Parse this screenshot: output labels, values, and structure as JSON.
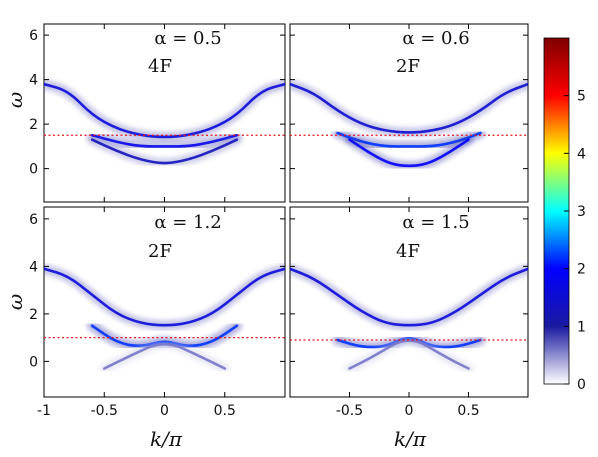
{
  "chart_data": {
    "type": "heatmap",
    "xlabel": "k/π",
    "ylabel": "ω",
    "xlim": [
      -1,
      1
    ],
    "ylim": [
      -1.5,
      6.5
    ],
    "xticks": [
      "-1",
      "-0.5",
      "0",
      "0.5",
      "1"
    ],
    "yticks": [
      "6",
      "4",
      "2",
      "0"
    ],
    "colorbar": {
      "range": [
        0,
        6
      ],
      "ticks": [
        "5",
        "4",
        "3",
        "2",
        "1",
        "0"
      ],
      "colormap": [
        "#ffffff",
        "#1a1aa0",
        "#0000ff",
        "#00ffff",
        "#ffff00",
        "#ff0000",
        "#800000"
      ]
    },
    "panels": [
      {
        "alpha_label": "α = 0.5",
        "phase_label": "4F",
        "fermi_level": 1.5,
        "bands": [
          {
            "x": [
              -1,
              -0.8,
              -0.6,
              -0.4,
              -0.2,
              0,
              0.2,
              0.4,
              0.6,
              0.8,
              1
            ],
            "y": [
              3.8,
              3.5,
              2.4,
              1.8,
              1.5,
              1.4,
              1.5,
              1.8,
              2.4,
              3.5,
              3.8
            ],
            "intensity": 1.6
          },
          {
            "x": [
              -0.6,
              -0.4,
              -0.2,
              0,
              0.2,
              0.4,
              0.6
            ],
            "y": [
              1.5,
              1.2,
              1.0,
              1.0,
              1.0,
              1.2,
              1.5
            ],
            "intensity": 1.8
          },
          {
            "x": [
              -0.6,
              -0.4,
              -0.2,
              0,
              0.2,
              0.4,
              0.6
            ],
            "y": [
              1.3,
              0.8,
              0.4,
              0.2,
              0.4,
              0.8,
              1.3
            ],
            "intensity": 1.3
          }
        ]
      },
      {
        "alpha_label": "α = 0.6",
        "phase_label": "2F",
        "fermi_level": 1.5,
        "bands": [
          {
            "x": [
              -1,
              -0.8,
              -0.6,
              -0.4,
              -0.2,
              0,
              0.2,
              0.4,
              0.6,
              0.8,
              1
            ],
            "y": [
              3.8,
              3.4,
              2.6,
              2.0,
              1.7,
              1.6,
              1.7,
              2.0,
              2.6,
              3.4,
              3.8
            ],
            "intensity": 1.5
          },
          {
            "x": [
              -0.6,
              -0.4,
              -0.2,
              0,
              0.2,
              0.4,
              0.6
            ],
            "y": [
              1.6,
              1.2,
              1.0,
              1.0,
              1.0,
              1.2,
              1.6
            ],
            "intensity": 2.2
          },
          {
            "x": [
              -0.5,
              -0.3,
              -0.15,
              0,
              0.15,
              0.3,
              0.5
            ],
            "y": [
              1.3,
              0.6,
              0.2,
              0.1,
              0.2,
              0.6,
              1.3
            ],
            "intensity": 2.0
          }
        ]
      },
      {
        "alpha_label": "α = 1.2",
        "phase_label": "2F",
        "fermi_level": 1.0,
        "bands": [
          {
            "x": [
              -1,
              -0.8,
              -0.6,
              -0.4,
              -0.2,
              0,
              0.2,
              0.4,
              0.6,
              0.8,
              1
            ],
            "y": [
              3.9,
              3.6,
              2.8,
              2.0,
              1.6,
              1.5,
              1.6,
              2.0,
              2.8,
              3.6,
              3.9
            ],
            "intensity": 1.6
          },
          {
            "x": [
              -0.6,
              -0.4,
              -0.2,
              0,
              0.2,
              0.4,
              0.6
            ],
            "y": [
              1.5,
              0.8,
              0.6,
              0.9,
              0.6,
              0.8,
              1.5
            ],
            "intensity": 2.2
          },
          {
            "x": [
              -0.5,
              -0.3,
              0,
              0.3,
              0.5
            ],
            "y": [
              -0.3,
              0.2,
              0.9,
              0.2,
              -0.3
            ],
            "intensity": 0.6
          }
        ]
      },
      {
        "alpha_label": "α = 1.5",
        "phase_label": "4F",
        "fermi_level": 0.9,
        "bands": [
          {
            "x": [
              -1,
              -0.8,
              -0.6,
              -0.4,
              -0.2,
              0,
              0.2,
              0.4,
              0.6,
              0.8,
              1
            ],
            "y": [
              3.9,
              3.5,
              2.8,
              2.1,
              1.6,
              1.5,
              1.6,
              2.1,
              2.8,
              3.5,
              3.9
            ],
            "intensity": 1.6
          },
          {
            "x": [
              -0.6,
              -0.4,
              -0.2,
              0,
              0.2,
              0.4,
              0.6
            ],
            "y": [
              0.9,
              0.6,
              0.6,
              1.1,
              0.6,
              0.6,
              0.9
            ],
            "intensity": 2.2
          },
          {
            "x": [
              -0.5,
              -0.3,
              0,
              0.3,
              0.5
            ],
            "y": [
              -0.3,
              0.2,
              1.1,
              0.2,
              -0.3
            ],
            "intensity": 0.6
          }
        ]
      }
    ]
  }
}
